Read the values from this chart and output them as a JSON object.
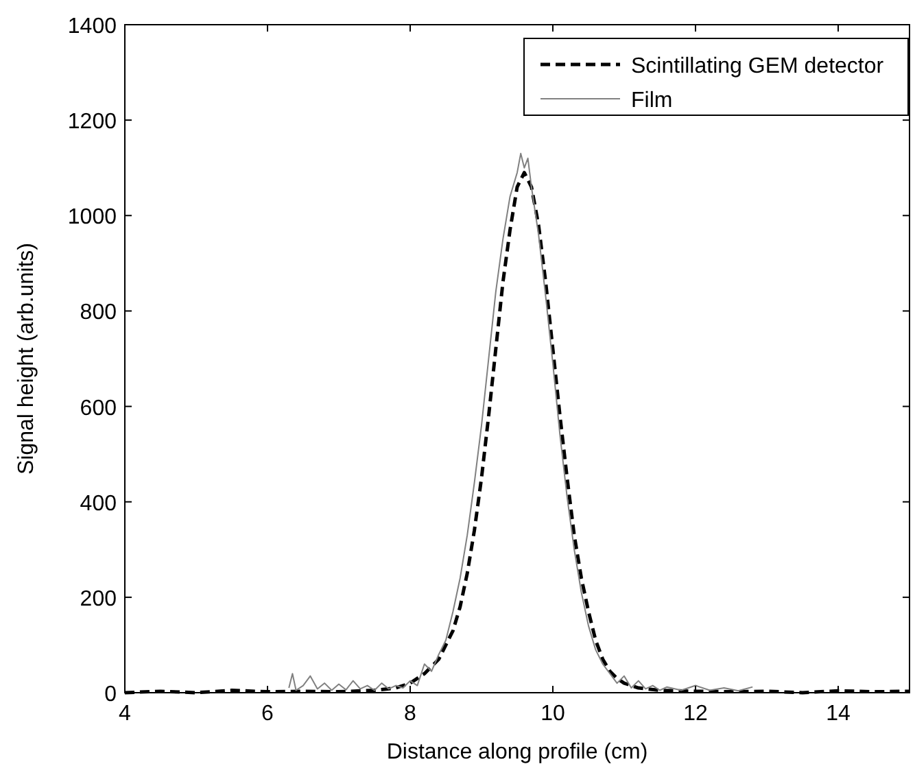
{
  "chart_data": {
    "type": "line",
    "xlabel": "Distance along profile (cm)",
    "ylabel": "Signal height (arb.units)",
    "xlim": [
      4,
      15
    ],
    "xticks": [
      4,
      6,
      8,
      10,
      12,
      14
    ],
    "ylim": [
      0,
      1400
    ],
    "yticks": [
      0,
      200,
      400,
      600,
      800,
      1000,
      1200,
      1400
    ],
    "grid": false,
    "legend": "top right",
    "series": [
      {
        "name": "Scintillating GEM detector",
        "color": "#000000",
        "line_style": "dashed",
        "x": [
          4,
          4.5,
          5,
          5.5,
          6,
          6.5,
          7,
          7.5,
          7.8,
          8.0,
          8.2,
          8.4,
          8.6,
          8.7,
          8.8,
          8.9,
          9.0,
          9.1,
          9.2,
          9.3,
          9.4,
          9.5,
          9.6,
          9.7,
          9.8,
          9.9,
          10.0,
          10.1,
          10.2,
          10.3,
          10.4,
          10.5,
          10.6,
          10.7,
          10.8,
          10.9,
          11.0,
          11.2,
          11.5,
          12,
          12.5,
          13,
          13.5,
          14,
          14.5,
          15
        ],
        "values": [
          0,
          3,
          0,
          5,
          2,
          3,
          2,
          5,
          10,
          20,
          40,
          70,
          130,
          180,
          250,
          340,
          450,
          580,
          720,
          860,
          970,
          1060,
          1090,
          1060,
          980,
          860,
          720,
          580,
          450,
          330,
          240,
          170,
          110,
          70,
          45,
          30,
          20,
          10,
          5,
          3,
          2,
          3,
          0,
          4,
          2,
          3
        ]
      },
      {
        "name": "Film",
        "color": "#808080",
        "line_style": "solid",
        "x": [
          6.3,
          6.35,
          6.4,
          6.5,
          6.6,
          6.7,
          6.8,
          6.9,
          7.0,
          7.1,
          7.2,
          7.3,
          7.4,
          7.5,
          7.6,
          7.7,
          7.8,
          7.9,
          8.0,
          8.1,
          8.2,
          8.3,
          8.4,
          8.5,
          8.6,
          8.7,
          8.8,
          8.9,
          9.0,
          9.1,
          9.2,
          9.3,
          9.4,
          9.5,
          9.55,
          9.6,
          9.65,
          9.7,
          9.8,
          9.9,
          10.0,
          10.1,
          10.2,
          10.3,
          10.4,
          10.5,
          10.6,
          10.7,
          10.8,
          10.9,
          11.0,
          11.1,
          11.2,
          11.3,
          11.4,
          11.5,
          11.6,
          11.8,
          12.0,
          12.2,
          12.4,
          12.6,
          12.8
        ],
        "values": [
          10,
          40,
          5,
          15,
          35,
          8,
          20,
          5,
          18,
          6,
          25,
          8,
          15,
          5,
          20,
          8,
          15,
          10,
          25,
          15,
          60,
          45,
          80,
          110,
          170,
          240,
          330,
          440,
          560,
          700,
          840,
          950,
          1040,
          1090,
          1130,
          1100,
          1120,
          1060,
          960,
          830,
          690,
          540,
          410,
          300,
          210,
          140,
          90,
          60,
          40,
          20,
          35,
          10,
          25,
          8,
          15,
          5,
          12,
          5,
          15,
          5,
          10,
          4,
          12
        ]
      }
    ]
  }
}
